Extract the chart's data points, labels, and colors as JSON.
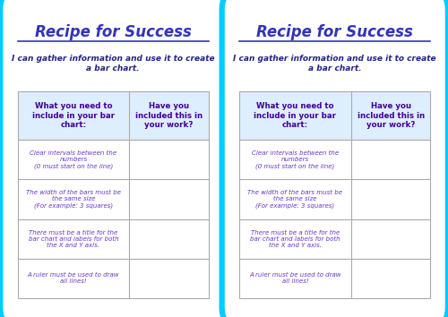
{
  "title": "Recipe for Success",
  "subtitle": "I can gather information and use it to create\na bar chart.",
  "col1_header": "What you need to\ninclude in your bar\nchart:",
  "col2_header": "Have you\nincluded this in\nyour work?",
  "rows": [
    "Clear intervals between the\nnumbers\n(0 must start on the line)",
    "The width of the bars must be\nthe same size\n(For example: 3 squares)",
    "There must be a title for the\nbar chart and labels for both\nthe X and Y axis.",
    "A ruler must be used to draw\nall lines!"
  ],
  "background_color": "#ffffff",
  "border_color": "#00ccff",
  "title_color": "#3333bb",
  "subtitle_color": "#222288",
  "header_color": "#440099",
  "row_text_color": "#6633cc",
  "table_border_color": "#aaaaaa",
  "card_bg": "#ffffff"
}
